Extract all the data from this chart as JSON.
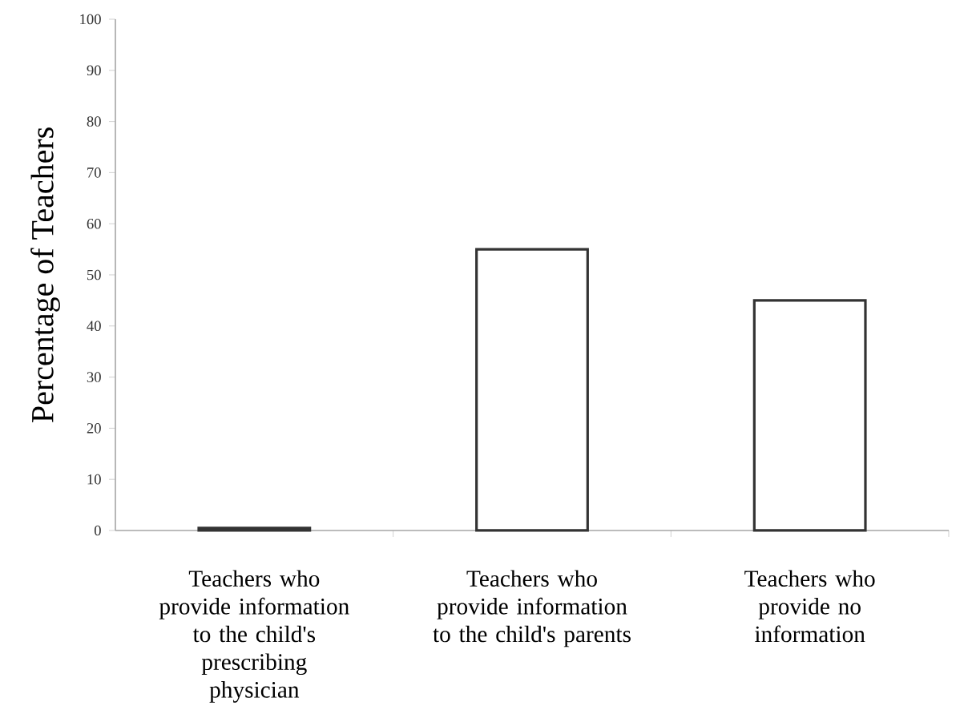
{
  "chart_data": {
    "type": "bar",
    "ylabel": "Percentage of Teachers",
    "categories": [
      "Teachers who provide information to the child's prescribing physician",
      "Teachers who provide information to the child's parents",
      "Teachers who provide no information"
    ],
    "values": [
      0.5,
      55,
      45
    ],
    "color": "#ffffff",
    "ylim": [
      0,
      100
    ],
    "yticks": [
      0,
      10,
      20,
      30,
      40,
      50,
      60,
      70,
      80,
      90,
      100
    ]
  }
}
